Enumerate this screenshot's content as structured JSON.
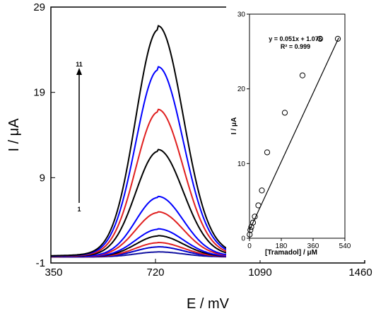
{
  "chart_data": [
    {
      "type": "line",
      "xlabel": "E / mV",
      "ylabel": "I / μA",
      "xlim": [
        350,
        1460
      ],
      "ylim": [
        -1,
        29
      ],
      "xticks": [
        350,
        720,
        1090,
        1460
      ],
      "yticks": [
        -1,
        9,
        19,
        29
      ],
      "x_data_max": 1150,
      "peak_potential": 730,
      "baseline": -0.3,
      "arrow": {
        "from_label": "1",
        "to_label": "11"
      },
      "series": [
        {
          "peak": 0.3,
          "color": "#1010a0"
        },
        {
          "peak": 0.9,
          "color": "#0000cc"
        },
        {
          "peak": 1.4,
          "color": "#e02020"
        },
        {
          "peak": 2.2,
          "color": "#000000"
        },
        {
          "peak": 3.0,
          "color": "#0000ff"
        },
        {
          "peak": 5.0,
          "color": "#e02020"
        },
        {
          "peak": 6.8,
          "color": "#0000ff"
        },
        {
          "peak": 12.3,
          "color": "#000000"
        },
        {
          "peak": 17.0,
          "color": "#e02020"
        },
        {
          "peak": 22.0,
          "color": "#0000ff"
        },
        {
          "peak": 26.8,
          "color": "#000000"
        }
      ]
    },
    {
      "type": "scatter",
      "xlabel": "[Tramadol] / μM",
      "ylabel": "I / μA",
      "xlim": [
        0,
        540
      ],
      "ylim": [
        0,
        30
      ],
      "xticks": [
        0,
        180,
        360,
        540
      ],
      "yticks": [
        0,
        10,
        20,
        30
      ],
      "equation": "y = 0.051x + 1.076",
      "r2": "R² = 0.999",
      "fit": {
        "slope": 0.051,
        "intercept": 1.076
      },
      "x": [
        1,
        5,
        10,
        20,
        30,
        50,
        70,
        100,
        200,
        300,
        400,
        500
      ],
      "y": [
        0.5,
        1.1,
        1.5,
        2.1,
        2.9,
        4.4,
        6.4,
        11.5,
        16.8,
        21.8,
        26.7,
        26.7
      ]
    }
  ]
}
